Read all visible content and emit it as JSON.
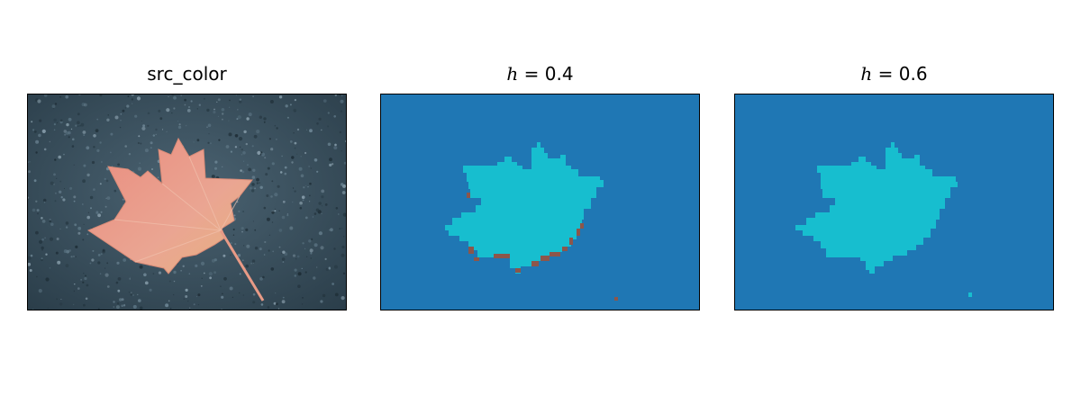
{
  "panels": [
    {
      "title": "src_color",
      "kind": "photo"
    },
    {
      "title_var": "h",
      "title_eq": " = 0.4",
      "kind": "segmentation"
    },
    {
      "title_var": "h",
      "title_eq": " = 0.6",
      "kind": "segmentation"
    }
  ],
  "colors": {
    "background_cluster": "#1f77b4",
    "leaf_cluster": "#17becf",
    "edge_cluster": "#8c564b",
    "photo_ground": "#3c5363",
    "leaf_color": "#e89a86"
  }
}
